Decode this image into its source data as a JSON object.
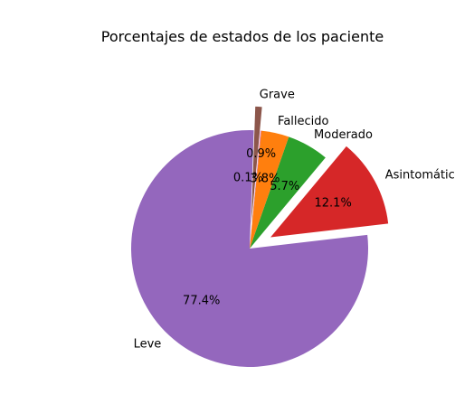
{
  "chart_data": {
    "type": "pie",
    "title": "Porcentajes de estados de los paciente",
    "slices": [
      {
        "label": "Leve",
        "value": 77.4,
        "pct_label": "77.4%",
        "color": "#9467bd",
        "exploded": false
      },
      {
        "label": "Asintomático",
        "value": 12.1,
        "pct_label": "12.1%",
        "color": "#d62728",
        "exploded": true
      },
      {
        "label": "Moderado",
        "value": 5.7,
        "pct_label": "5.7%",
        "color": "#2ca02c",
        "exploded": false
      },
      {
        "label": "Fallecido",
        "value": 3.8,
        "pct_label": "3.8%",
        "color": "#ff7f0e",
        "exploded": false
      },
      {
        "label": "",
        "value": 0.1,
        "pct_label": "0.1%",
        "color": "#e377c2",
        "exploded": false
      },
      {
        "label": "Grave",
        "value": 0.9,
        "pct_label": "0.9%",
        "color": "#8c564b",
        "exploded": true
      }
    ]
  }
}
